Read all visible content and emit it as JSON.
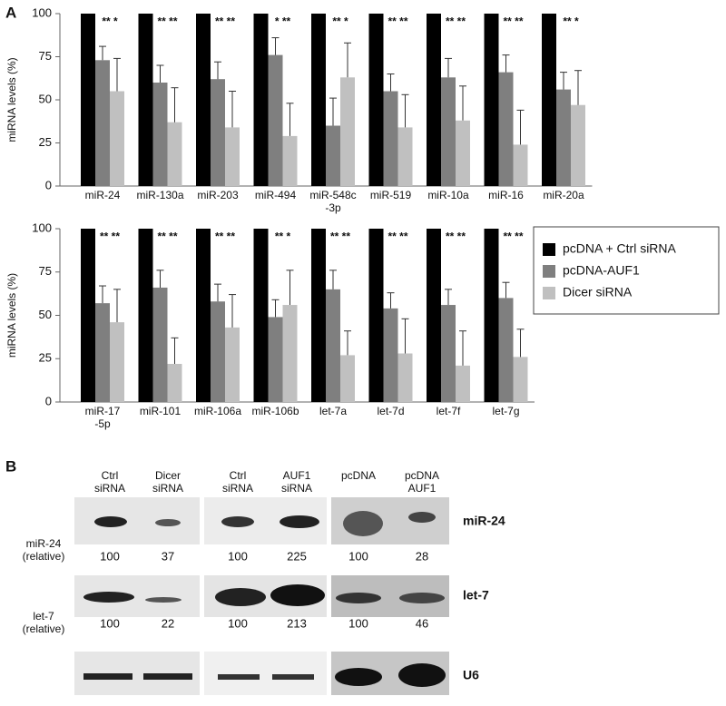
{
  "panel_labels": [
    "A",
    "B"
  ],
  "chart_data": [
    {
      "type": "bar",
      "y_label": "miRNA levels (%)",
      "categories": [
        "miR-24",
        "miR-130a",
        "miR-203",
        "miR-494",
        "miR-548c\n-3p",
        "miR-519",
        "miR-10a",
        "miR-16",
        "miR-20a"
      ],
      "annotations": [
        "** *",
        "** **",
        "** **",
        "* **",
        "** *",
        "** **",
        "** **",
        "** **",
        "** *"
      ],
      "series": [
        {
          "name": "pcDNA + Ctrl siRNA",
          "color": "#000000",
          "values": [
            100,
            100,
            100,
            100,
            100,
            100,
            100,
            100,
            100
          ]
        },
        {
          "name": "pcDNA-AUF1",
          "color": "#7f7f7f",
          "values": [
            73,
            60,
            62,
            76,
            35,
            55,
            63,
            66,
            56
          ],
          "errors": [
            8,
            10,
            10,
            10,
            16,
            10,
            11,
            10,
            10
          ]
        },
        {
          "name": "Dicer siRNA",
          "color": "#c0c0c0",
          "values": [
            55,
            37,
            34,
            29,
            63,
            34,
            38,
            24,
            47
          ],
          "errors": [
            19,
            20,
            21,
            19,
            20,
            19,
            20,
            20,
            20
          ]
        }
      ],
      "ylim": [
        0,
        100
      ],
      "yticks": [
        0,
        25,
        50,
        75,
        100
      ]
    },
    {
      "type": "bar",
      "y_label": "miRNA levels (%)",
      "categories": [
        "miR-17\n-5p",
        "miR-101",
        "miR-106a",
        "miR-106b",
        "let-7a",
        "let-7d",
        "let-7f",
        "let-7g"
      ],
      "annotations": [
        "** **",
        "** **",
        "** **",
        "** *",
        "** **",
        "** **",
        "** **",
        "** **"
      ],
      "series": [
        {
          "name": "pcDNA + Ctrl siRNA",
          "color": "#000000",
          "values": [
            100,
            100,
            100,
            100,
            100,
            100,
            100,
            100
          ]
        },
        {
          "name": "pcDNA-AUF1",
          "color": "#7f7f7f",
          "values": [
            57,
            66,
            58,
            49,
            65,
            54,
            56,
            60
          ],
          "errors": [
            10,
            10,
            10,
            10,
            11,
            9,
            9,
            9
          ]
        },
        {
          "name": "Dicer siRNA",
          "color": "#c0c0c0",
          "values": [
            46,
            22,
            43,
            56,
            27,
            28,
            21,
            26
          ],
          "errors": [
            19,
            15,
            19,
            20,
            14,
            20,
            20,
            16
          ]
        }
      ],
      "ylim": [
        0,
        100
      ],
      "yticks": [
        0,
        25,
        50,
        75,
        100
      ],
      "legend": "right"
    }
  ],
  "blot": {
    "columns": [
      "Ctrl\nsiRNA",
      "Dicer\nsiRNA",
      "Ctrl\nsiRNA",
      "AUF1\nsiRNA",
      "pcDNA",
      "pcDNA\nAUF1"
    ],
    "rows": [
      {
        "name": "miR-24",
        "label": "miR-24\n(relative)",
        "values": [
          "100",
          "37",
          "100",
          "225",
          "100",
          "28"
        ]
      },
      {
        "name": "let-7",
        "label": "let-7\n(relative)",
        "values": [
          "100",
          "22",
          "100",
          "213",
          "100",
          "46"
        ]
      },
      {
        "name": "U6"
      }
    ]
  }
}
